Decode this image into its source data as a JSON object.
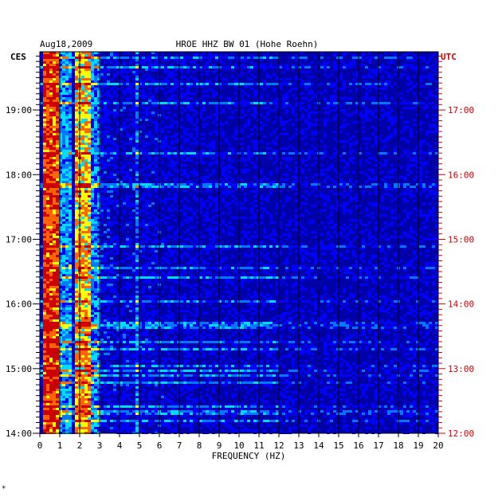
{
  "header": {
    "date": "Aug18,2009",
    "station": "HROE HHZ BW 01 (Hohe Roehn)",
    "left_zone": "CES",
    "right_zone": "UTC"
  },
  "footer_mark": "*",
  "chart_data": {
    "type": "heatmap",
    "title": "HROE HHZ BW 01 (Hohe Roehn)",
    "xlabel": "FREQUENCY (HZ)",
    "xlim": [
      0,
      20
    ],
    "x_ticks": [
      "0",
      "1",
      "2",
      "3",
      "4",
      "5",
      "6",
      "7",
      "8",
      "9",
      "10",
      "11",
      "12",
      "13",
      "14",
      "15",
      "16",
      "17",
      "18",
      "19",
      "20"
    ],
    "left_axis": {
      "label": "CES",
      "range_hours": [
        14.0,
        19.9
      ],
      "ticks": [
        {
          "label": "19:00",
          "hour": 19
        },
        {
          "label": "18:00",
          "hour": 18
        },
        {
          "label": "17:00",
          "hour": 17
        },
        {
          "label": "16:00",
          "hour": 16
        },
        {
          "label": "15:00",
          "hour": 15
        },
        {
          "label": "14:00",
          "hour": 14
        }
      ]
    },
    "right_axis": {
      "label": "UTC",
      "ticks": [
        {
          "label": "17:00",
          "hour": 19
        },
        {
          "label": "16:00",
          "hour": 18
        },
        {
          "label": "15:00",
          "hour": 17
        },
        {
          "label": "14:00",
          "hour": 16
        },
        {
          "label": "13:00",
          "hour": 15
        },
        {
          "label": "12:00",
          "hour": 14
        }
      ]
    },
    "colors": {
      "background": "#0000a8",
      "frame": "#000000",
      "right_axis": "#cc0000",
      "scale": [
        "#0000a8",
        "#0000ff",
        "#0078ff",
        "#00dcff",
        "#ffff00",
        "#ff6400",
        "#cc0000"
      ]
    },
    "bands_hz": [
      {
        "from": 0.2,
        "to": 1.0,
        "level": 0.85
      },
      {
        "from": 1.0,
        "to": 1.6,
        "level": 0.4
      },
      {
        "from": 1.8,
        "to": 2.6,
        "level": 0.7
      },
      {
        "from": 2.6,
        "to": 3.0,
        "level": 0.35
      },
      {
        "from": 4.8,
        "to": 5.0,
        "level": 0.3
      }
    ]
  }
}
